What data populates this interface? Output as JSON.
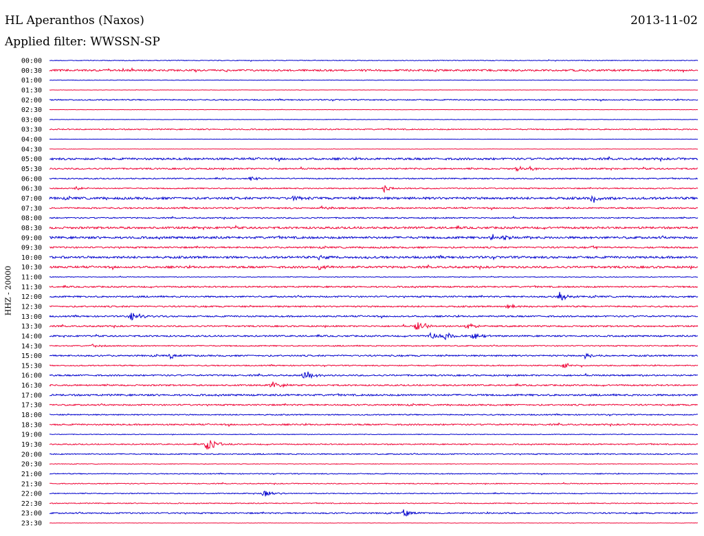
{
  "header": {
    "station": "HL Aperanthos (Naxos)",
    "date": "2013-11-02",
    "filter_label": "Applied filter: WWSSN-SP"
  },
  "channel_label": "HHZ - 20000",
  "chart_data": {
    "type": "helicorder",
    "ylabel": "HHZ - 20000",
    "row_labels": [
      "00:00",
      "00:30",
      "01:00",
      "01:30",
      "02:00",
      "02:30",
      "03:00",
      "03:30",
      "04:00",
      "04:30",
      "05:00",
      "05:30",
      "06:00",
      "06:30",
      "07:00",
      "07:30",
      "08:00",
      "08:30",
      "09:00",
      "09:30",
      "10:00",
      "10:30",
      "11:00",
      "11:30",
      "12:00",
      "12:30",
      "13:00",
      "13:30",
      "14:00",
      "14:30",
      "15:00",
      "15:30",
      "16:00",
      "16:30",
      "17:00",
      "17:30",
      "18:00",
      "18:30",
      "19:00",
      "19:30",
      "20:00",
      "20:30",
      "21:00",
      "21:30",
      "22:00",
      "22:30",
      "23:00",
      "23:30"
    ],
    "trace_colors": [
      "#0000cc",
      "#ee0033"
    ],
    "noise_levels": [
      0.6,
      1.6,
      0.4,
      0.3,
      1.0,
      0.3,
      0.4,
      1.0,
      0.3,
      0.3,
      1.8,
      1.3,
      1.0,
      1.0,
      2.0,
      1.3,
      1.1,
      1.8,
      1.9,
      1.4,
      1.9,
      1.8,
      0.6,
      1.3,
      1.3,
      1.3,
      1.3,
      1.3,
      1.3,
      1.0,
      1.3,
      1.0,
      1.3,
      1.3,
      1.5,
      1.3,
      1.0,
      1.3,
      0.6,
      1.0,
      1.0,
      0.5,
      0.8,
      0.8,
      0.8,
      0.8,
      1.2,
      0.3
    ],
    "events": [
      {
        "row": 11,
        "time_min": 21.6,
        "amp": 4
      },
      {
        "row": 11,
        "time_min": 22.3,
        "amp": 4
      },
      {
        "row": 12,
        "time_min": 9.3,
        "amp": 3
      },
      {
        "row": 13,
        "time_min": 1.2,
        "amp": 3
      },
      {
        "row": 13,
        "time_min": 15.5,
        "amp": 5
      },
      {
        "row": 14,
        "time_min": 25.1,
        "amp": 8
      },
      {
        "row": 14,
        "time_min": 11.3,
        "amp": 3
      },
      {
        "row": 15,
        "time_min": 12.6,
        "amp": 3
      },
      {
        "row": 18,
        "time_min": 20.5,
        "amp": 6
      },
      {
        "row": 18,
        "time_min": 21.0,
        "amp": 5
      },
      {
        "row": 19,
        "time_min": 25.0,
        "amp": 3
      },
      {
        "row": 20,
        "time_min": 12.4,
        "amp": 4
      },
      {
        "row": 21,
        "time_min": 12.5,
        "amp": 4
      },
      {
        "row": 24,
        "time_min": 23.6,
        "amp": 7
      },
      {
        "row": 25,
        "time_min": 21.2,
        "amp": 4
      },
      {
        "row": 26,
        "time_min": 3.8,
        "amp": 7
      },
      {
        "row": 27,
        "time_min": 17.0,
        "amp": 9
      },
      {
        "row": 27,
        "time_min": 19.3,
        "amp": 5
      },
      {
        "row": 28,
        "time_min": 17.6,
        "amp": 6
      },
      {
        "row": 28,
        "time_min": 18.3,
        "amp": 6
      },
      {
        "row": 28,
        "time_min": 19.6,
        "amp": 5
      },
      {
        "row": 29,
        "time_min": 2.0,
        "amp": 3
      },
      {
        "row": 30,
        "time_min": 5.6,
        "amp": 4
      },
      {
        "row": 30,
        "time_min": 24.8,
        "amp": 4
      },
      {
        "row": 31,
        "time_min": 23.7,
        "amp": 5
      },
      {
        "row": 32,
        "time_min": 11.8,
        "amp": 7
      },
      {
        "row": 33,
        "time_min": 10.3,
        "amp": 6
      },
      {
        "row": 39,
        "time_min": 7.3,
        "amp": 10
      },
      {
        "row": 44,
        "time_min": 9.9,
        "amp": 5
      },
      {
        "row": 46,
        "time_min": 16.4,
        "amp": 5
      }
    ]
  }
}
